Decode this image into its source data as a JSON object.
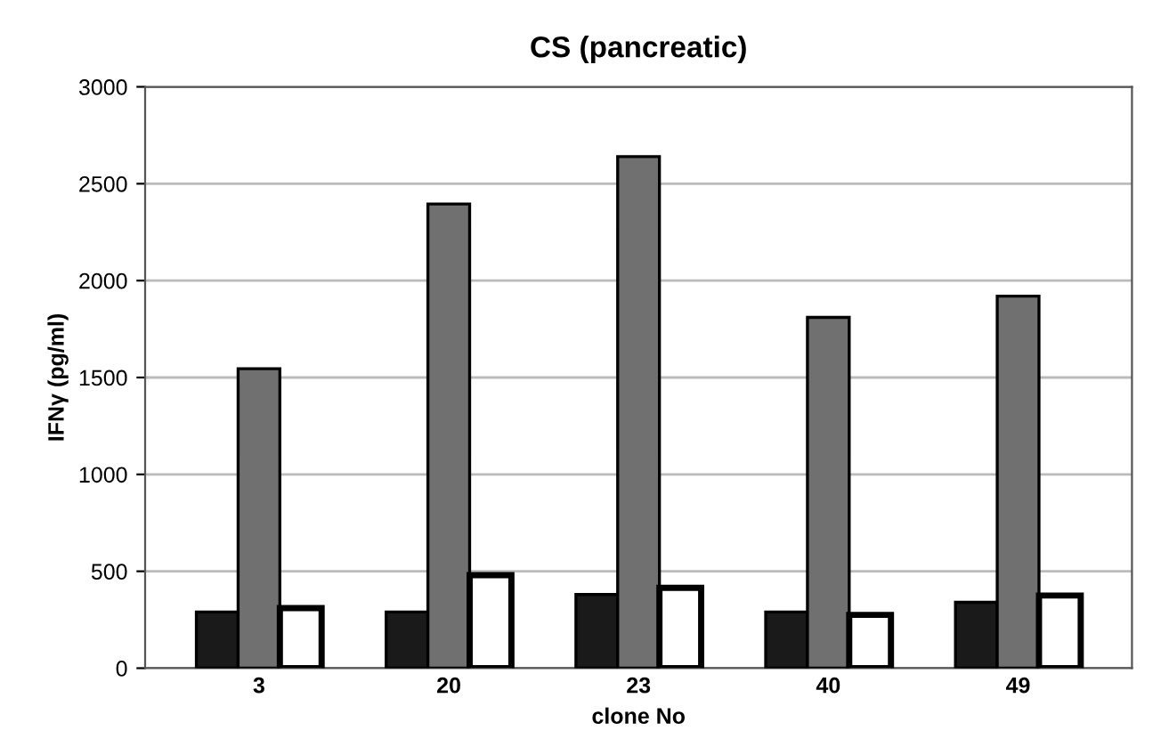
{
  "chart_data": {
    "type": "bar",
    "title": "CS (pancreatic)",
    "xlabel": "clone No",
    "ylabel": "IFNγ (pg/ml)",
    "categories": [
      "3",
      "20",
      "23",
      "40",
      "49"
    ],
    "series": [
      {
        "color": "#1a1a1a",
        "values": [
          290,
          290,
          380,
          290,
          340
        ]
      },
      {
        "color": "#707070",
        "values": [
          1545,
          2395,
          2640,
          1810,
          1920
        ]
      },
      {
        "color": "#ffffff",
        "values": [
          310,
          480,
          415,
          275,
          375
        ]
      }
    ],
    "ylim": [
      0,
      3000
    ],
    "yticks": [
      0,
      500,
      1000,
      1500,
      2000,
      2500,
      3000
    ],
    "grid": "y"
  }
}
